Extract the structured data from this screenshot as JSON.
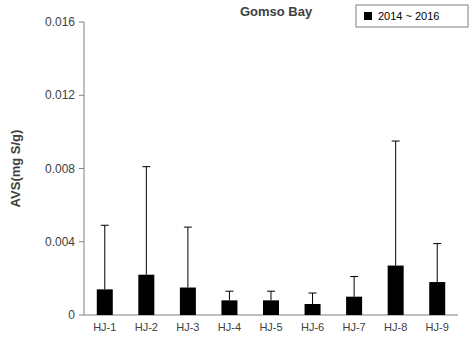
{
  "chart_data": {
    "type": "bar",
    "title": "Gomso Bay",
    "y_label": "AVS(mg S/g)",
    "categories": [
      "HJ-1",
      "HJ-2",
      "HJ-3",
      "HJ-4",
      "HJ-5",
      "HJ-6",
      "HJ-7",
      "HJ-8",
      "HJ-9"
    ],
    "series": [
      {
        "name": "2014 ~ 2016",
        "color": "#000000",
        "values": [
          0.0014,
          0.0022,
          0.0015,
          0.0008,
          0.0008,
          0.0006,
          0.001,
          0.0027,
          0.0018
        ],
        "errors": [
          0.0035,
          0.0059,
          0.0033,
          0.0005,
          0.0005,
          0.0006,
          0.0011,
          0.0068,
          0.0021
        ]
      }
    ],
    "ylim": [
      0,
      0.016
    ],
    "yticks": [
      0,
      0.004,
      0.008,
      0.012,
      0.016
    ],
    "grid": false,
    "legend": "top-right"
  }
}
